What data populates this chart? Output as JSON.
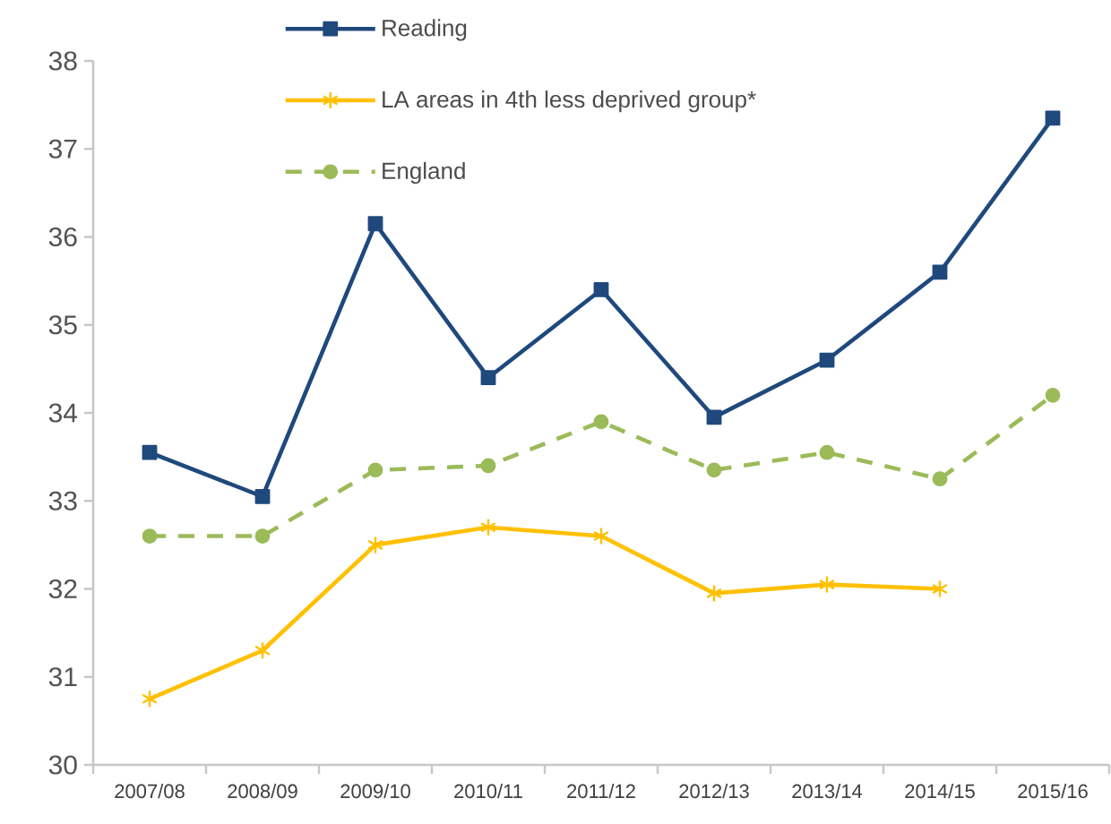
{
  "chart_data": {
    "type": "line",
    "categories": [
      "2007/08",
      "2008/09",
      "2009/10",
      "2010/11",
      "2011/12",
      "2012/13",
      "2013/14",
      "2014/15",
      "2015/16"
    ],
    "series": [
      {
        "name": "Reading",
        "color": "#1f497d",
        "marker": "square",
        "line_style": "solid",
        "values": [
          33.55,
          33.05,
          36.15,
          34.4,
          35.4,
          33.95,
          34.6,
          35.6,
          37.35
        ]
      },
      {
        "name": "LA areas in 4th less deprived group*",
        "color": "#ffc000",
        "marker": "cross",
        "line_style": "solid",
        "values": [
          30.75,
          31.3,
          32.5,
          32.7,
          32.6,
          31.95,
          32.05,
          32.0,
          null
        ]
      },
      {
        "name": "England",
        "color": "#9bbb59",
        "marker": "circle",
        "line_style": "dashed",
        "values": [
          32.6,
          32.6,
          33.35,
          33.4,
          33.9,
          33.35,
          33.55,
          33.25,
          34.2
        ]
      }
    ],
    "ylim": [
      30,
      38
    ],
    "yticks": [
      30,
      31,
      32,
      33,
      34,
      35,
      36,
      37,
      38
    ],
    "grid": false,
    "legend": "top"
  }
}
